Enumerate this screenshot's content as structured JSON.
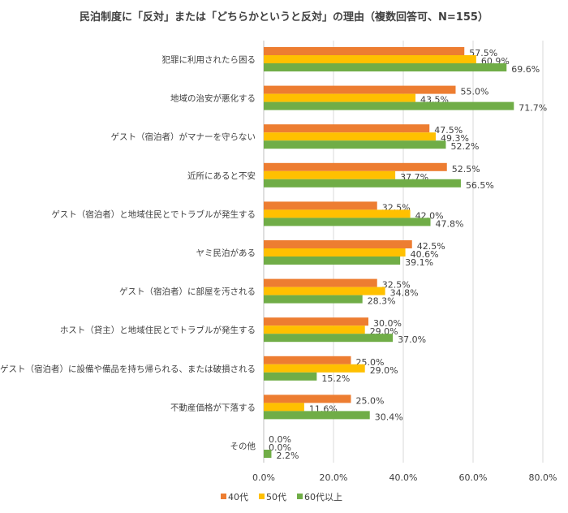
{
  "chart_data": {
    "type": "bar",
    "orientation": "horizontal",
    "title": "民泊制度に「反対」または「どちらかというと反対」の理由（複数回答可、N=155）",
    "xlabel": "",
    "ylabel": "",
    "xlim": [
      0,
      80
    ],
    "x_ticks": [
      "0.0%",
      "20.0%",
      "40.0%",
      "60.0%",
      "80.0%"
    ],
    "grid": true,
    "legend_position": "bottom",
    "categories": [
      "犯罪に利用されたら困る",
      "地域の治安が悪化する",
      "ゲスト（宿泊者）がマナーを守らない",
      "近所にあると不安",
      "ゲスト（宿泊者）と地域住民とでトラブルが発生する",
      "ヤミ民泊がある",
      "ゲスト（宿泊者）に部屋を汚される",
      "ホスト（貸主）と地域住民とでトラブルが発生する",
      "ゲスト（宿泊者）に設備や備品を持ち帰られる、または破損される",
      "不動産価格が下落する",
      "その他"
    ],
    "series": [
      {
        "name": "40代",
        "color": "#ED7D31",
        "values": [
          57.5,
          55.0,
          47.5,
          52.5,
          32.5,
          42.5,
          32.5,
          30.0,
          25.0,
          25.0,
          0.0
        ]
      },
      {
        "name": "50代",
        "color": "#FFC000",
        "values": [
          60.9,
          43.5,
          49.3,
          37.7,
          42.0,
          40.6,
          34.8,
          29.0,
          29.0,
          11.6,
          0.0
        ]
      },
      {
        "name": "60代以上",
        "color": "#70AD47",
        "values": [
          69.6,
          71.7,
          52.2,
          56.5,
          47.8,
          39.1,
          28.3,
          37.0,
          15.2,
          30.4,
          2.2
        ]
      }
    ]
  }
}
